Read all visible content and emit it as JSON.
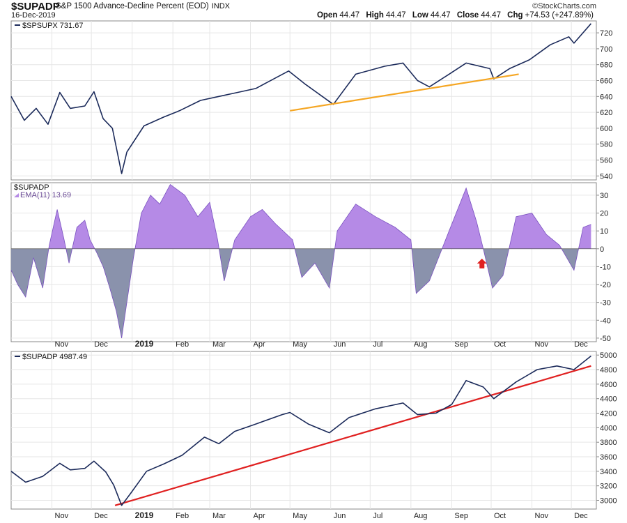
{
  "header": {
    "symbol": "$SUPADP",
    "description": "S&P 1500 Advance-Decline Percent (EOD)",
    "exchange": "INDX",
    "date": "16-Dec-2019",
    "brand": "©StockCharts.com",
    "open_label": "Open",
    "open": "44.47",
    "high_label": "High",
    "high": "44.47",
    "low_label": "Low",
    "low": "44.47",
    "close_label": "Close",
    "close": "44.47",
    "chg_label": "Chg",
    "chg": "+74.53 (+247.89%)"
  },
  "colors": {
    "price_line": "#1b2a5a",
    "orange_trend": "#f5a623",
    "red_trend": "#e02020",
    "osc_positive": "#b58ae6",
    "osc_negative": "#8a92ac",
    "grid": "#e6e6e6",
    "arrow": "#e02020"
  },
  "chart_data": [
    {
      "type": "line",
      "label": "$SPSUPX 731.67",
      "x_months": [
        "Nov",
        "Dec",
        "2019",
        "Feb",
        "Mar",
        "Apr",
        "May",
        "Jun",
        "Jul",
        "Aug",
        "Sep",
        "Oct",
        "Nov",
        "Dec"
      ],
      "ylim": [
        535,
        735
      ],
      "yticks": [
        540,
        560,
        580,
        600,
        620,
        640,
        660,
        680,
        700,
        720
      ],
      "series": [
        {
          "name": "$SPSUPX",
          "values": [
            {
              "x": "2018-10-01",
              "y": 640
            },
            {
              "x": "2018-10-11",
              "y": 610
            },
            {
              "x": "2018-10-20",
              "y": 625
            },
            {
              "x": "2018-10-29",
              "y": 605
            },
            {
              "x": "2018-11-07",
              "y": 645
            },
            {
              "x": "2018-11-15",
              "y": 625
            },
            {
              "x": "2018-11-26",
              "y": 628
            },
            {
              "x": "2018-12-03",
              "y": 646
            },
            {
              "x": "2018-12-10",
              "y": 612
            },
            {
              "x": "2018-12-17",
              "y": 600
            },
            {
              "x": "2018-12-24",
              "y": 543
            },
            {
              "x": "2018-12-28",
              "y": 570
            },
            {
              "x": "2019-01-10",
              "y": 603
            },
            {
              "x": "2019-01-25",
              "y": 614
            },
            {
              "x": "2019-02-06",
              "y": 622
            },
            {
              "x": "2019-02-22",
              "y": 635
            },
            {
              "x": "2019-03-08",
              "y": 640
            },
            {
              "x": "2019-03-22",
              "y": 645
            },
            {
              "x": "2019-04-05",
              "y": 650
            },
            {
              "x": "2019-04-22",
              "y": 665
            },
            {
              "x": "2019-04-30",
              "y": 672
            },
            {
              "x": "2019-05-13",
              "y": 655
            },
            {
              "x": "2019-06-03",
              "y": 630
            },
            {
              "x": "2019-06-20",
              "y": 668
            },
            {
              "x": "2019-07-12",
              "y": 678
            },
            {
              "x": "2019-07-26",
              "y": 682
            },
            {
              "x": "2019-08-06",
              "y": 660
            },
            {
              "x": "2019-08-15",
              "y": 652
            },
            {
              "x": "2019-08-30",
              "y": 668
            },
            {
              "x": "2019-09-12",
              "y": 682
            },
            {
              "x": "2019-09-30",
              "y": 675
            },
            {
              "x": "2019-10-03",
              "y": 662
            },
            {
              "x": "2019-10-15",
              "y": 675
            },
            {
              "x": "2019-10-30",
              "y": 686
            },
            {
              "x": "2019-11-15",
              "y": 705
            },
            {
              "x": "2019-11-29",
              "y": 715
            },
            {
              "x": "2019-12-03",
              "y": 707
            },
            {
              "x": "2019-12-16",
              "y": 731.67
            }
          ]
        },
        {
          "name": "Orange trendline",
          "values": [
            {
              "x": "2019-05-01",
              "y": 622
            },
            {
              "x": "2019-10-22",
              "y": 668
            }
          ]
        }
      ]
    },
    {
      "type": "area",
      "label": "$SUPADP",
      "legend": "EMA(11) 13.69",
      "ylim": [
        -52,
        37
      ],
      "yticks": [
        -50,
        -40,
        -30,
        -20,
        -10,
        0,
        10,
        20,
        30
      ],
      "series": [
        {
          "name": "EMA(11)",
          "values": [
            {
              "x": "2018-10-01",
              "y": -12
            },
            {
              "x": "2018-10-06",
              "y": -20
            },
            {
              "x": "2018-10-12",
              "y": -27
            },
            {
              "x": "2018-10-18",
              "y": -5
            },
            {
              "x": "2018-10-25",
              "y": -22
            },
            {
              "x": "2018-10-30",
              "y": 2
            },
            {
              "x": "2018-11-05",
              "y": 22
            },
            {
              "x": "2018-11-10",
              "y": 6
            },
            {
              "x": "2018-11-14",
              "y": -8
            },
            {
              "x": "2018-11-20",
              "y": 12
            },
            {
              "x": "2018-11-26",
              "y": 16
            },
            {
              "x": "2018-11-30",
              "y": 5
            },
            {
              "x": "2018-12-05",
              "y": -2
            },
            {
              "x": "2018-12-10",
              "y": -10
            },
            {
              "x": "2018-12-15",
              "y": -22
            },
            {
              "x": "2018-12-20",
              "y": -35
            },
            {
              "x": "2018-12-24",
              "y": -50
            },
            {
              "x": "2018-12-28",
              "y": -30
            },
            {
              "x": "2019-01-02",
              "y": -5
            },
            {
              "x": "2019-01-08",
              "y": 20
            },
            {
              "x": "2019-01-15",
              "y": 30
            },
            {
              "x": "2019-01-22",
              "y": 25
            },
            {
              "x": "2019-01-30",
              "y": 36
            },
            {
              "x": "2019-02-10",
              "y": 30
            },
            {
              "x": "2019-02-20",
              "y": 18
            },
            {
              "x": "2019-03-01",
              "y": 26
            },
            {
              "x": "2019-03-07",
              "y": 5
            },
            {
              "x": "2019-03-12",
              "y": -18
            },
            {
              "x": "2019-03-20",
              "y": 5
            },
            {
              "x": "2019-04-01",
              "y": 18
            },
            {
              "x": "2019-04-10",
              "y": 22
            },
            {
              "x": "2019-04-20",
              "y": 14
            },
            {
              "x": "2019-05-03",
              "y": 5
            },
            {
              "x": "2019-05-10",
              "y": -16
            },
            {
              "x": "2019-05-20",
              "y": -8
            },
            {
              "x": "2019-05-31",
              "y": -22
            },
            {
              "x": "2019-06-06",
              "y": 10
            },
            {
              "x": "2019-06-20",
              "y": 25
            },
            {
              "x": "2019-07-05",
              "y": 18
            },
            {
              "x": "2019-07-20",
              "y": 12
            },
            {
              "x": "2019-08-01",
              "y": 5
            },
            {
              "x": "2019-08-05",
              "y": -25
            },
            {
              "x": "2019-08-15",
              "y": -18
            },
            {
              "x": "2019-08-30",
              "y": 10
            },
            {
              "x": "2019-09-12",
              "y": 34
            },
            {
              "x": "2019-09-20",
              "y": 15
            },
            {
              "x": "2019-09-25",
              "y": 0
            },
            {
              "x": "2019-10-02",
              "y": -22
            },
            {
              "x": "2019-10-10",
              "y": -15
            },
            {
              "x": "2019-10-20",
              "y": 18
            },
            {
              "x": "2019-11-01",
              "y": 20
            },
            {
              "x": "2019-11-12",
              "y": 8
            },
            {
              "x": "2019-11-22",
              "y": 2
            },
            {
              "x": "2019-12-03",
              "y": -12
            },
            {
              "x": "2019-12-10",
              "y": 12
            },
            {
              "x": "2019-12-16",
              "y": 13.69
            }
          ]
        }
      ],
      "annotations": [
        {
          "type": "arrow",
          "direction": "up",
          "x": "2019-09-24",
          "y": -9
        }
      ]
    },
    {
      "type": "line",
      "label": "$SUPADP 4987.49",
      "ylim": [
        2880,
        5050
      ],
      "yticks": [
        3000,
        3200,
        3400,
        3600,
        3800,
        4000,
        4200,
        4400,
        4600,
        4800,
        5000
      ],
      "series": [
        {
          "name": "$SUPADP",
          "values": [
            {
              "x": "2018-10-01",
              "y": 3400
            },
            {
              "x": "2018-10-12",
              "y": 3250
            },
            {
              "x": "2018-10-25",
              "y": 3330
            },
            {
              "x": "2018-11-07",
              "y": 3510
            },
            {
              "x": "2018-11-15",
              "y": 3420
            },
            {
              "x": "2018-11-26",
              "y": 3440
            },
            {
              "x": "2018-12-03",
              "y": 3540
            },
            {
              "x": "2018-12-12",
              "y": 3390
            },
            {
              "x": "2018-12-18",
              "y": 3210
            },
            {
              "x": "2018-12-24",
              "y": 2930
            },
            {
              "x": "2018-12-31",
              "y": 3100
            },
            {
              "x": "2019-01-12",
              "y": 3400
            },
            {
              "x": "2019-01-25",
              "y": 3500
            },
            {
              "x": "2019-02-08",
              "y": 3620
            },
            {
              "x": "2019-02-25",
              "y": 3870
            },
            {
              "x": "2019-03-08",
              "y": 3780
            },
            {
              "x": "2019-03-20",
              "y": 3950
            },
            {
              "x": "2019-04-05",
              "y": 4050
            },
            {
              "x": "2019-04-25",
              "y": 4180
            },
            {
              "x": "2019-05-01",
              "y": 4210
            },
            {
              "x": "2019-05-15",
              "y": 4050
            },
            {
              "x": "2019-05-31",
              "y": 3930
            },
            {
              "x": "2019-06-15",
              "y": 4140
            },
            {
              "x": "2019-07-05",
              "y": 4260
            },
            {
              "x": "2019-07-26",
              "y": 4340
            },
            {
              "x": "2019-08-06",
              "y": 4180
            },
            {
              "x": "2019-08-20",
              "y": 4200
            },
            {
              "x": "2019-09-01",
              "y": 4320
            },
            {
              "x": "2019-09-12",
              "y": 4650
            },
            {
              "x": "2019-09-25",
              "y": 4560
            },
            {
              "x": "2019-10-03",
              "y": 4400
            },
            {
              "x": "2019-10-20",
              "y": 4630
            },
            {
              "x": "2019-11-05",
              "y": 4800
            },
            {
              "x": "2019-11-20",
              "y": 4850
            },
            {
              "x": "2019-12-03",
              "y": 4800
            },
            {
              "x": "2019-12-16",
              "y": 4987.49
            }
          ]
        },
        {
          "name": "Red trendline",
          "values": [
            {
              "x": "2018-12-19",
              "y": 2930
            },
            {
              "x": "2019-12-16",
              "y": 4850
            }
          ]
        }
      ]
    }
  ]
}
